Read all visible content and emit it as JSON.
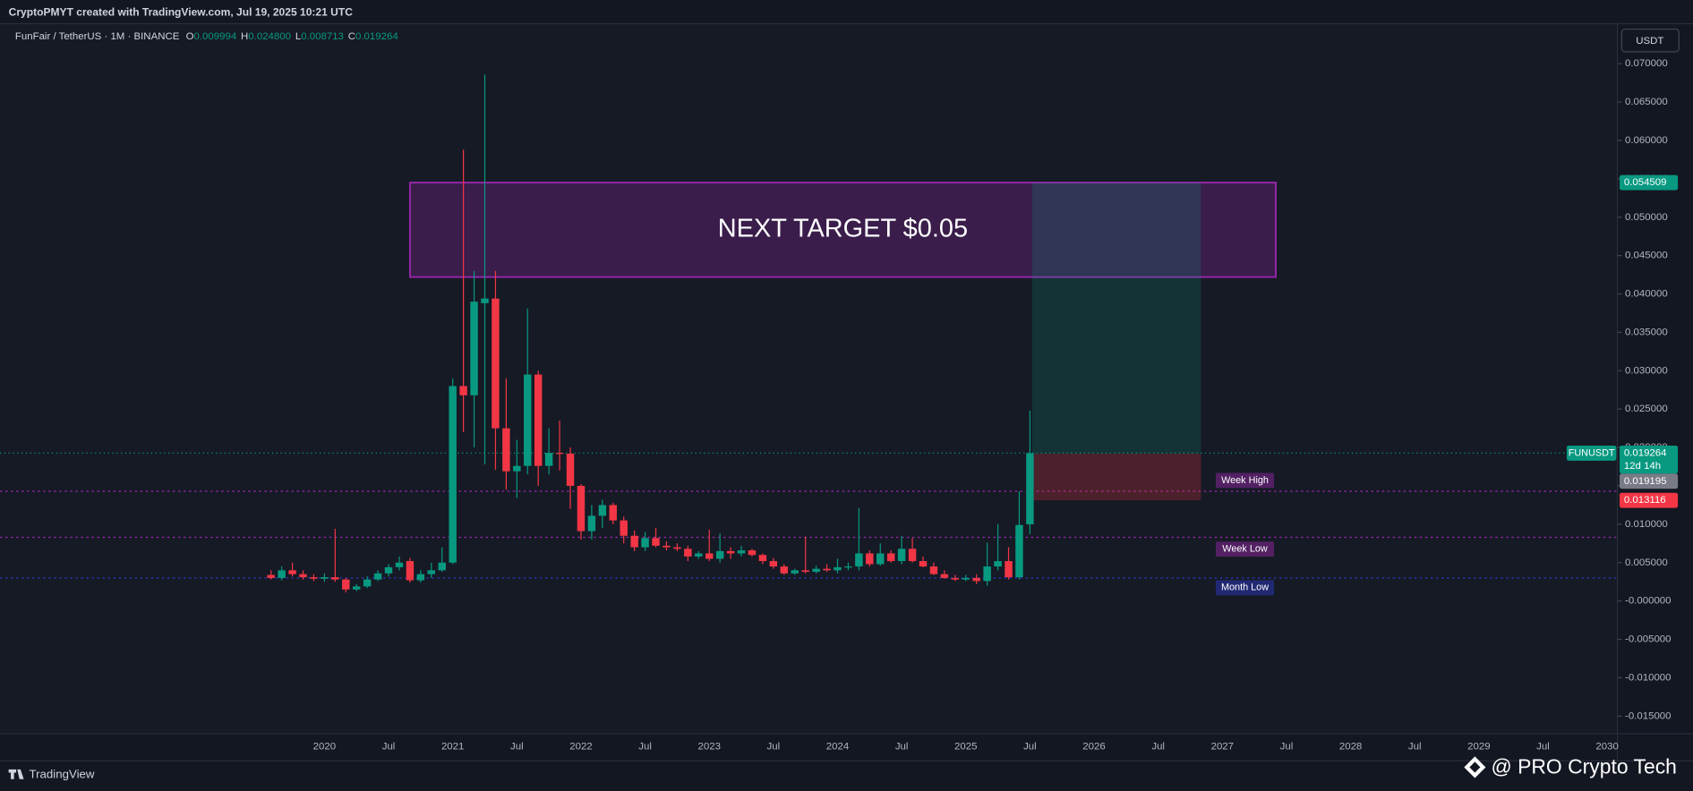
{
  "header": "CryptoPMYT created with TradingView.com, Jul 19, 2025 10:21 UTC",
  "footer": {
    "brand": "TradingView",
    "watermark": "@ PRO Crypto Tech"
  },
  "chart_data": {
    "type": "candlestick",
    "symbol": "FunFair / TetherUS · 1M · BINANCE",
    "ohlc_labels": [
      {
        "key": "O",
        "label": "0.009994"
      },
      {
        "key": "H",
        "label": "0.024800"
      },
      {
        "key": "L",
        "label": "0.008713"
      },
      {
        "key": "C",
        "label": "0.019264"
      }
    ],
    "currency": "USDT",
    "symbol_tag": "FUNUSDT",
    "countdown": "12d 14h",
    "up_color": "#089981",
    "down_color": "#f23645",
    "x": [
      "2019-08",
      "2019-09",
      "2019-10",
      "2019-11",
      "2019-12",
      "2020-01",
      "2020-02",
      "2020-03",
      "2020-04",
      "2020-05",
      "2020-06",
      "2020-07",
      "2020-08",
      "2020-09",
      "2020-10",
      "2020-11",
      "2020-12",
      "2021-01",
      "2021-02",
      "2021-03",
      "2021-04",
      "2021-05",
      "2021-06",
      "2021-07",
      "2021-08",
      "2021-09",
      "2021-10",
      "2021-11",
      "2021-12",
      "2022-01",
      "2022-02",
      "2022-03",
      "2022-04",
      "2022-05",
      "2022-06",
      "2022-07",
      "2022-08",
      "2022-09",
      "2022-10",
      "2022-11",
      "2022-12",
      "2023-01",
      "2023-02",
      "2023-03",
      "2023-04",
      "2023-05",
      "2023-06",
      "2023-07",
      "2023-08",
      "2023-09",
      "2023-10",
      "2023-11",
      "2023-12",
      "2024-01",
      "2024-02",
      "2024-03",
      "2024-04",
      "2024-05",
      "2024-06",
      "2024-07",
      "2024-08",
      "2024-09",
      "2024-10",
      "2024-11",
      "2024-12",
      "2025-01",
      "2025-02",
      "2025-03",
      "2025-04",
      "2025-05",
      "2025-06",
      "2025-07"
    ],
    "open": [
      0.0034,
      0.003,
      0.004,
      0.0035,
      0.0031,
      0.0029,
      0.0031,
      0.0028,
      0.0015,
      0.0019,
      0.0028,
      0.0036,
      0.0044,
      0.0052,
      0.0027,
      0.0035,
      0.004,
      0.005,
      0.028,
      0.0268,
      0.0388,
      0.0394,
      0.0225,
      0.0169,
      0.0176,
      0.0295,
      0.0176,
      0.0193,
      0.0192,
      0.015,
      0.0091,
      0.0111,
      0.0125,
      0.0105,
      0.0085,
      0.007,
      0.0082,
      0.0072,
      0.007,
      0.0068,
      0.0058,
      0.0062,
      0.0055,
      0.0065,
      0.0062,
      0.0066,
      0.006,
      0.0052,
      0.0045,
      0.0036,
      0.004,
      0.0038,
      0.0042,
      0.004,
      0.0044,
      0.0045,
      0.0062,
      0.0048,
      0.0062,
      0.0052,
      0.0068,
      0.0052,
      0.0045,
      0.0035,
      0.003,
      0.0028,
      0.003,
      0.0026,
      0.0045,
      0.0052,
      0.0031,
      0.009994
    ],
    "high": [
      0.004,
      0.0045,
      0.005,
      0.004,
      0.0035,
      0.0036,
      0.0094,
      0.003,
      0.0022,
      0.0032,
      0.004,
      0.0048,
      0.0058,
      0.0056,
      0.004,
      0.005,
      0.007,
      0.029,
      0.0588,
      0.043,
      0.0686,
      0.043,
      0.029,
      0.021,
      0.0381,
      0.03,
      0.0225,
      0.0235,
      0.02,
      0.0152,
      0.0125,
      0.0132,
      0.0128,
      0.011,
      0.0092,
      0.009,
      0.0095,
      0.0078,
      0.0075,
      0.0072,
      0.0065,
      0.0093,
      0.0088,
      0.007,
      0.0072,
      0.0068,
      0.0062,
      0.0056,
      0.0048,
      0.0042,
      0.0084,
      0.0046,
      0.0048,
      0.0055,
      0.005,
      0.0121,
      0.0066,
      0.0075,
      0.0066,
      0.0085,
      0.0082,
      0.0058,
      0.005,
      0.004,
      0.0034,
      0.0034,
      0.0035,
      0.0076,
      0.01,
      0.007,
      0.0143,
      0.0248
    ],
    "low": [
      0.0028,
      0.0027,
      0.0032,
      0.0028,
      0.0026,
      0.0025,
      0.0025,
      0.0011,
      0.0013,
      0.0017,
      0.0026,
      0.0032,
      0.004,
      0.0024,
      0.0024,
      0.003,
      0.0038,
      0.0048,
      0.022,
      0.02,
      0.0178,
      0.0171,
      0.0145,
      0.0134,
      0.0165,
      0.015,
      0.0165,
      0.017,
      0.012,
      0.008,
      0.008,
      0.0095,
      0.01,
      0.0075,
      0.0065,
      0.0065,
      0.007,
      0.0066,
      0.0065,
      0.0052,
      0.0055,
      0.0052,
      0.005,
      0.0055,
      0.0058,
      0.0058,
      0.0048,
      0.0042,
      0.0034,
      0.0034,
      0.0036,
      0.0036,
      0.0038,
      0.0036,
      0.004,
      0.004,
      0.0045,
      0.0046,
      0.005,
      0.0048,
      0.005,
      0.0044,
      0.0034,
      0.0029,
      0.0026,
      0.0026,
      0.0022,
      0.002,
      0.004,
      0.0028,
      0.0028,
      0.008713
    ],
    "close": [
      0.003,
      0.004,
      0.0035,
      0.0031,
      0.0029,
      0.0031,
      0.0028,
      0.0015,
      0.0019,
      0.0028,
      0.0036,
      0.0044,
      0.005,
      0.0027,
      0.0035,
      0.004,
      0.005,
      0.028,
      0.0268,
      0.039,
      0.0394,
      0.0225,
      0.0169,
      0.0176,
      0.0295,
      0.0176,
      0.0193,
      0.0192,
      0.015,
      0.0091,
      0.0111,
      0.0125,
      0.0105,
      0.0085,
      0.007,
      0.0082,
      0.0072,
      0.007,
      0.0068,
      0.0058,
      0.0062,
      0.0055,
      0.0065,
      0.0062,
      0.0066,
      0.006,
      0.0052,
      0.0045,
      0.0036,
      0.004,
      0.0038,
      0.0042,
      0.004,
      0.0044,
      0.0045,
      0.0062,
      0.0048,
      0.0062,
      0.0052,
      0.0068,
      0.0052,
      0.0045,
      0.0035,
      0.003,
      0.0028,
      0.003,
      0.0026,
      0.0045,
      0.0052,
      0.0031,
      0.0099,
      0.019264
    ],
    "ylim": [
      -0.0173,
      0.0752
    ],
    "yticks": [
      {
        "value": 0.07,
        "label": "0.070000"
      },
      {
        "value": 0.065,
        "label": "0.065000"
      },
      {
        "value": 0.06,
        "label": "0.060000"
      },
      {
        "value": 0.055,
        "label": "0.055000"
      },
      {
        "value": 0.05,
        "label": "0.050000"
      },
      {
        "value": 0.045,
        "label": "0.045000"
      },
      {
        "value": 0.04,
        "label": "0.040000"
      },
      {
        "value": 0.035,
        "label": "0.035000"
      },
      {
        "value": 0.03,
        "label": "0.030000"
      },
      {
        "value": 0.025,
        "label": "0.025000"
      },
      {
        "value": 0.02,
        "label": "0.020000"
      },
      {
        "value": 0.015,
        "label": "0.015000"
      },
      {
        "value": 0.01,
        "label": "0.010000"
      },
      {
        "value": 0.005,
        "label": "0.005000"
      },
      {
        "value": 0,
        "label": "-0.000000"
      },
      {
        "value": -0.005,
        "label": "-0.005000"
      },
      {
        "value": -0.01,
        "label": "-0.010000"
      },
      {
        "value": -0.015,
        "label": "-0.015000"
      }
    ],
    "xticks": [
      {
        "value": "2020-01",
        "label": "2020"
      },
      {
        "value": "2020-07",
        "label": "Jul"
      },
      {
        "value": "2021-01",
        "label": "2021"
      },
      {
        "value": "2021-07",
        "label": "Jul"
      },
      {
        "value": "2022-01",
        "label": "2022"
      },
      {
        "value": "2022-07",
        "label": "Jul"
      },
      {
        "value": "2023-01",
        "label": "2023"
      },
      {
        "value": "2023-07",
        "label": "Jul"
      },
      {
        "value": "2024-01",
        "label": "2024"
      },
      {
        "value": "2024-07",
        "label": "Jul"
      },
      {
        "value": "2025-01",
        "label": "2025"
      },
      {
        "value": "2025-07",
        "label": "Jul"
      },
      {
        "value": "2026-01",
        "label": "2026"
      },
      {
        "value": "2026-07",
        "label": "Jul"
      },
      {
        "value": "2027-01",
        "label": "2027"
      },
      {
        "value": "2027-07",
        "label": "Jul"
      },
      {
        "value": "2028-01",
        "label": "2028"
      },
      {
        "value": "2028-07",
        "label": "Jul"
      },
      {
        "value": "2029-01",
        "label": "2029"
      },
      {
        "value": "2029-07",
        "label": "Jul"
      },
      {
        "value": "2030-01",
        "label": "2030"
      }
    ],
    "grid": false,
    "levels": [
      {
        "label": "Week High",
        "value": 0.0143,
        "color": "#9c27b0"
      },
      {
        "label": "Week Low",
        "value": 0.0083,
        "color": "#9c27b0"
      },
      {
        "label": "Month Low",
        "value": 0.003,
        "color": "#2f3bd1"
      }
    ],
    "target_zone": {
      "text": "NEXT TARGET $0.05",
      "top": 0.054509,
      "bottom": 0.0422,
      "start": "2020-09",
      "end": "2027-06",
      "color": "#9c27b0"
    },
    "position": {
      "start": "2025-07",
      "end": "2026-11",
      "entry": 0.019195,
      "stop": 0.013116,
      "entry_color": "#787b86"
    }
  }
}
